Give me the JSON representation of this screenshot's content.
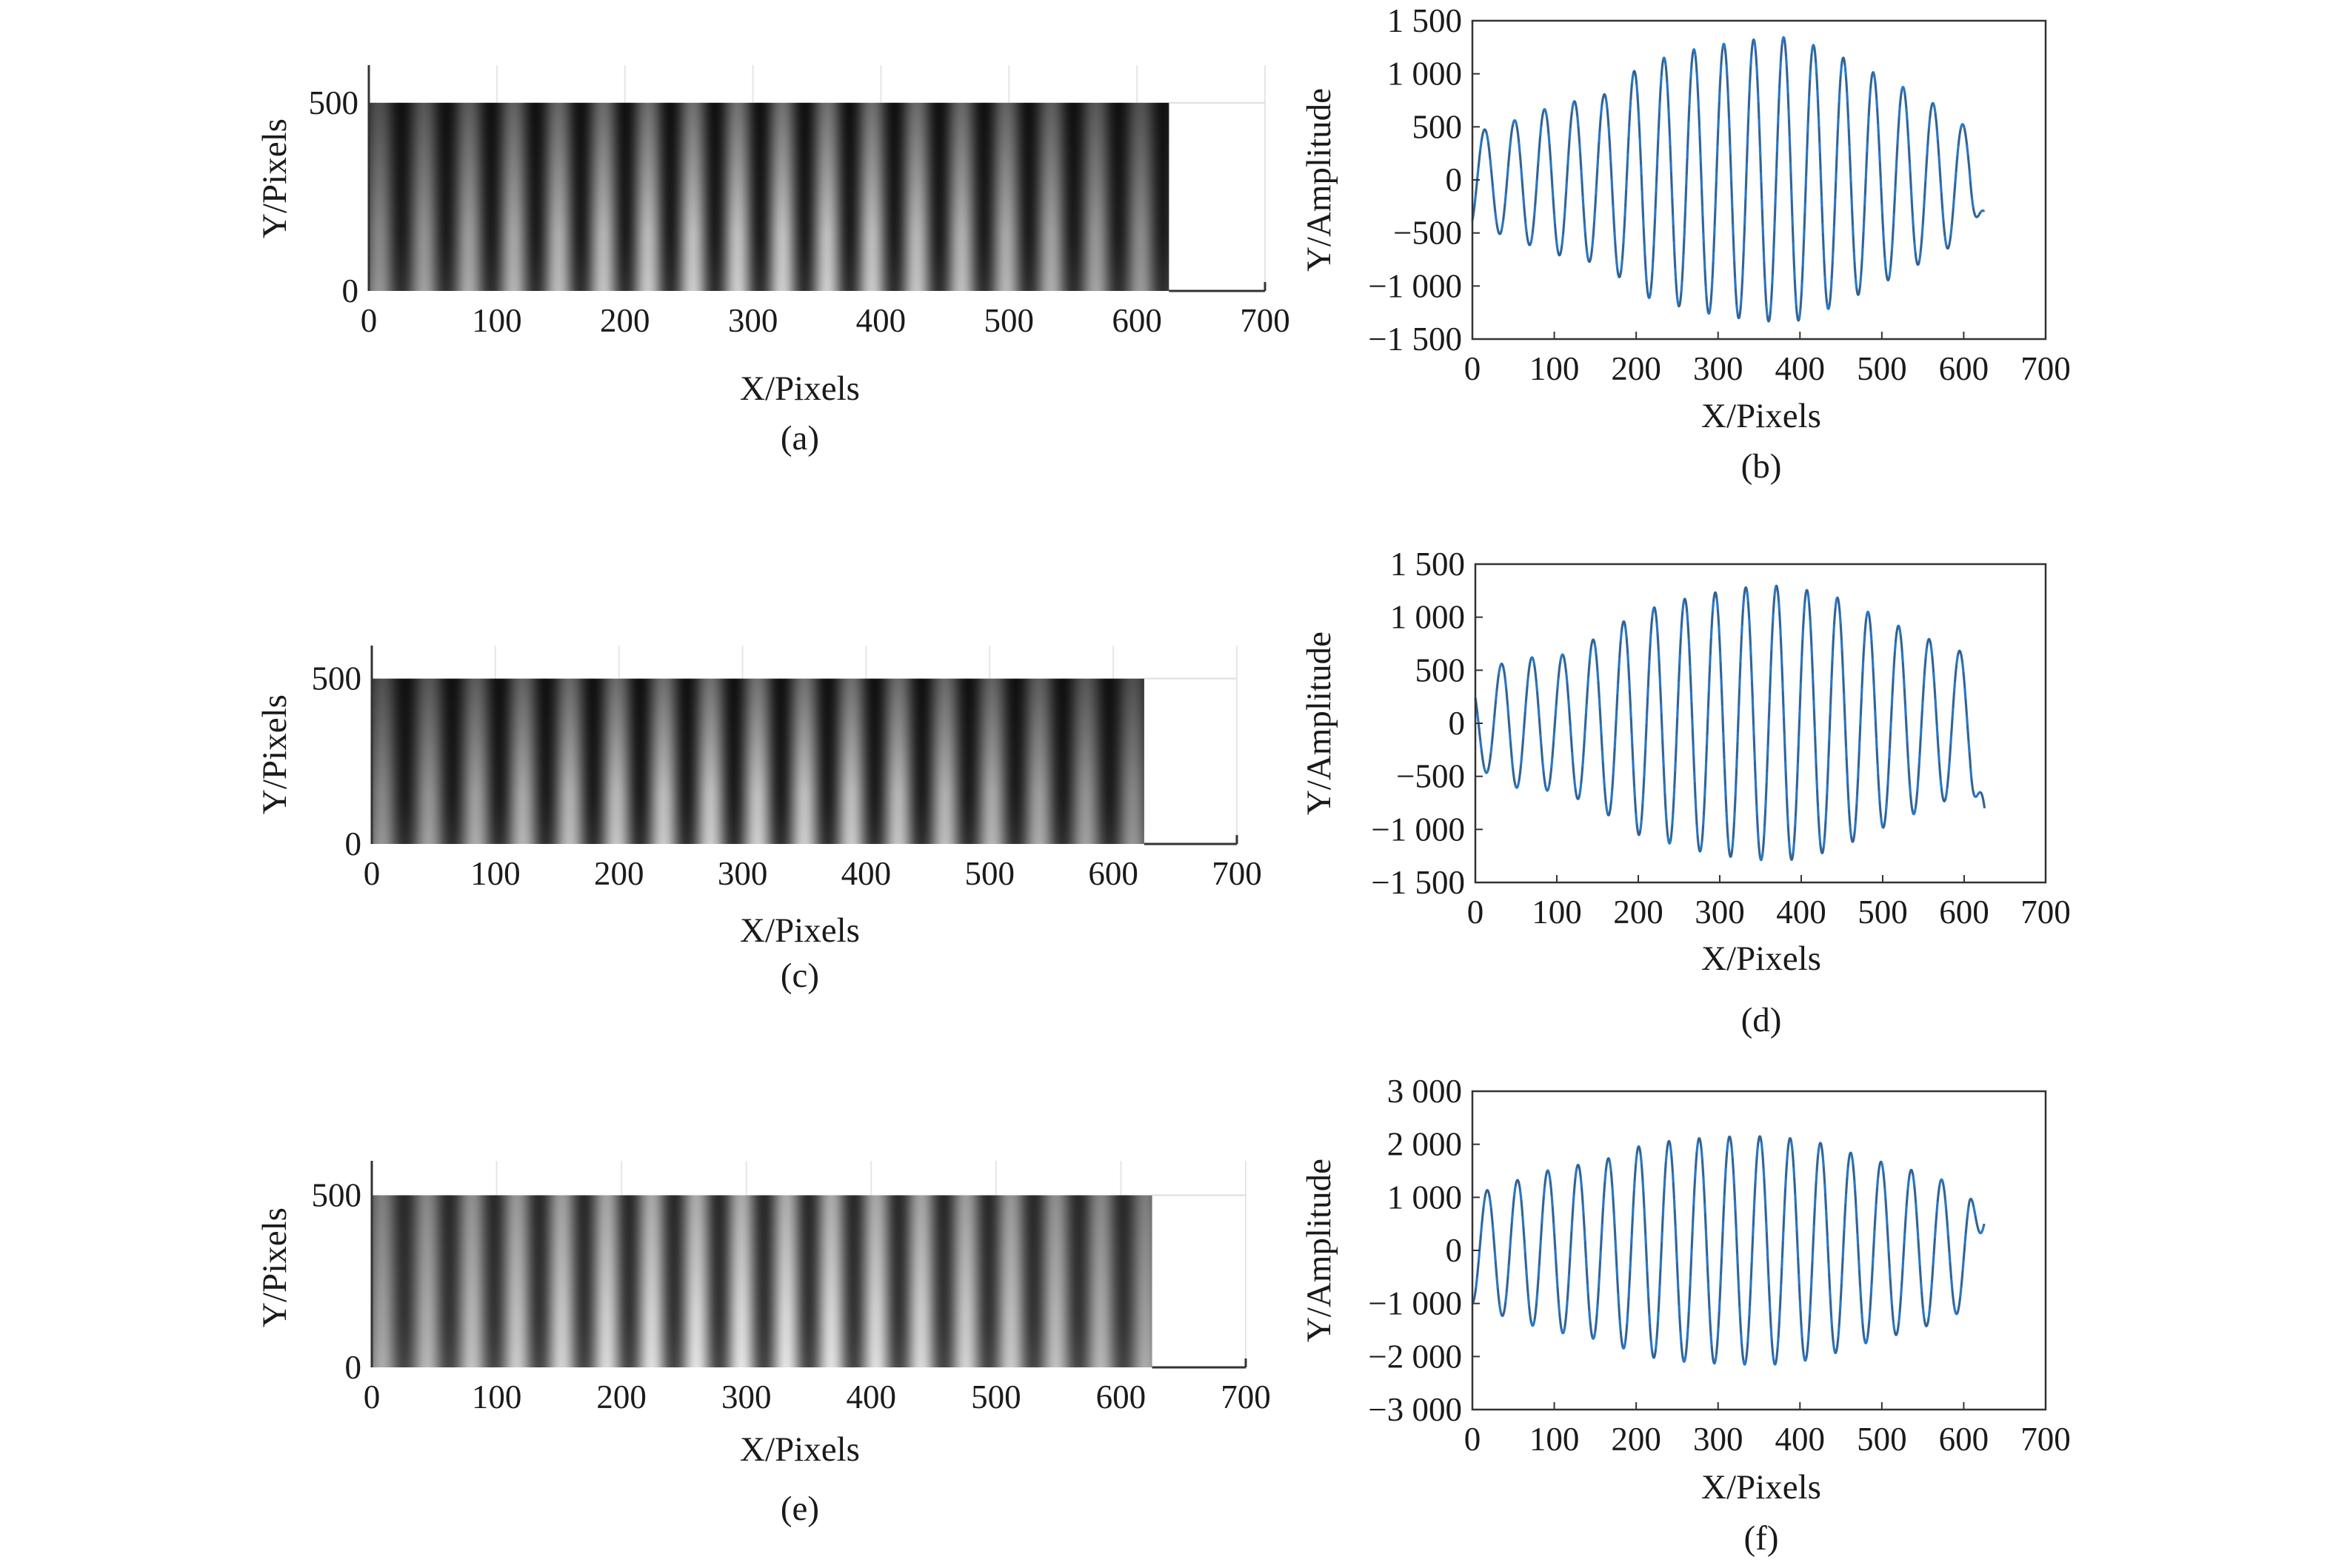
{
  "chart_data": [
    {
      "panel": "a",
      "type": "heatmap",
      "caption": "(a)",
      "xlabel": "X/Pixels",
      "ylabel": "Y/Pixels",
      "xlim": [
        0,
        700
      ],
      "ylim": [
        0,
        600
      ],
      "xticks": [
        0,
        100,
        200,
        300,
        400,
        500,
        600,
        700
      ],
      "yticks": [
        0,
        500
      ],
      "xtick_labels": [
        "0",
        "100",
        "200",
        "300",
        "400",
        "500",
        "600",
        "700"
      ],
      "ytick_labels": [
        "0",
        "500"
      ],
      "image_extent": {
        "x": [
          0,
          625
        ],
        "y": [
          0,
          500
        ]
      },
      "fringe_period": 35,
      "fringe_count": 17,
      "colormap": "gray",
      "brightness": "dark"
    },
    {
      "panel": "b",
      "type": "line",
      "caption": "(b)",
      "xlabel": "X/Pixels",
      "ylabel": "Y/Amplitude",
      "xlim": [
        0,
        700
      ],
      "ylim": [
        -1500,
        1500
      ],
      "xticks": [
        0,
        100,
        200,
        300,
        400,
        500,
        600,
        700
      ],
      "yticks": [
        -1500,
        -1000,
        -500,
        0,
        500,
        1000,
        1500
      ],
      "xtick_labels": [
        "0",
        "100",
        "200",
        "300",
        "400",
        "500",
        "600",
        "700"
      ],
      "ytick_labels": [
        "−1 500",
        "−1 000",
        "−500",
        "0",
        "500",
        "1 000",
        "1 500"
      ],
      "x_range": [
        0,
        625
      ],
      "period": 36.5,
      "phase_x": 15,
      "end_value": -300,
      "envelope": {
        "x": [
          0,
          30,
          100,
          160,
          210,
          280,
          340,
          390,
          440,
          520,
          580,
          625
        ],
        "y": [
          450,
          500,
          700,
          800,
          1100,
          1250,
          1320,
          1350,
          1200,
          900,
          650,
          350
        ]
      },
      "line_color": "#2878c8",
      "grey_overlay": "#4a4a4a"
    },
    {
      "panel": "c",
      "type": "heatmap",
      "caption": "(c)",
      "xlabel": "X/Pixels",
      "ylabel": "Y/Pixels",
      "xlim": [
        0,
        700
      ],
      "ylim": [
        0,
        600
      ],
      "xticks": [
        0,
        100,
        200,
        300,
        400,
        500,
        600,
        700
      ],
      "yticks": [
        0,
        500
      ],
      "xtick_labels": [
        "0",
        "100",
        "200",
        "300",
        "400",
        "500",
        "600",
        "700"
      ],
      "ytick_labels": [
        "0",
        "500"
      ],
      "image_extent": {
        "x": [
          0,
          625
        ],
        "y": [
          0,
          500
        ]
      },
      "fringe_period": 38,
      "fringe_count": 16,
      "colormap": "gray",
      "brightness": "dark"
    },
    {
      "panel": "d",
      "type": "line",
      "caption": "(d)",
      "xlabel": "X/Pixels",
      "ylabel": "Y/Amplitude",
      "xlim": [
        0,
        700
      ],
      "ylim": [
        -1500,
        1500
      ],
      "xticks": [
        0,
        100,
        200,
        300,
        400,
        500,
        600,
        700
      ],
      "yticks": [
        -1500,
        -1000,
        -500,
        0,
        500,
        1000,
        1500
      ],
      "xtick_labels": [
        "0",
        "100",
        "200",
        "300",
        "400",
        "500",
        "600",
        "700"
      ],
      "ytick_labels": [
        "−1 500",
        "−1 000",
        "−500",
        "0",
        "500",
        "1 000",
        "1 500"
      ],
      "x_range": [
        0,
        625
      ],
      "period": 37.5,
      "phase_x": 32,
      "end_value": -800,
      "envelope": {
        "x": [
          0,
          40,
          110,
          160,
          200,
          270,
          330,
          380,
          440,
          510,
          570,
          625
        ],
        "y": [
          400,
          600,
          650,
          850,
          1050,
          1200,
          1280,
          1300,
          1200,
          950,
          750,
          600
        ]
      },
      "line_color": "#2878c8",
      "grey_overlay": "#4a4a4a"
    },
    {
      "panel": "e",
      "type": "heatmap",
      "caption": "(e)",
      "xlabel": "X/Pixels",
      "ylabel": "Y/Pixels",
      "xlim": [
        0,
        700
      ],
      "ylim": [
        0,
        600
      ],
      "xticks": [
        0,
        100,
        200,
        300,
        400,
        500,
        600,
        700
      ],
      "yticks": [
        0,
        500
      ],
      "xtick_labels": [
        "0",
        "100",
        "200",
        "300",
        "400",
        "500",
        "600",
        "700"
      ],
      "ytick_labels": [
        "0",
        "500"
      ],
      "image_extent": {
        "x": [
          0,
          625
        ],
        "y": [
          0,
          500
        ]
      },
      "fringe_period": 36,
      "fringe_count": 17,
      "colormap": "gray",
      "brightness": "light"
    },
    {
      "panel": "f",
      "type": "line",
      "caption": "(f)",
      "xlabel": "X/Pixels",
      "ylabel": "Y/Amplitude",
      "xlim": [
        0,
        700
      ],
      "ylim": [
        -3000,
        3000
      ],
      "xticks": [
        0,
        100,
        200,
        300,
        400,
        500,
        600,
        700
      ],
      "yticks": [
        -3000,
        -2000,
        -1000,
        0,
        1000,
        2000,
        3000
      ],
      "xtick_labels": [
        "0",
        "100",
        "200",
        "300",
        "400",
        "500",
        "600",
        "700"
      ],
      "ytick_labels": [
        "−3 000",
        "−2 000",
        "−1 000",
        "0",
        "1 000",
        "2 000",
        "3 000"
      ],
      "x_range": [
        0,
        625
      ],
      "period": 37,
      "phase_x": 18,
      "end_value": 500,
      "envelope": {
        "x": [
          0,
          20,
          90,
          160,
          210,
          260,
          320,
          370,
          420,
          480,
          540,
          580,
          625
        ],
        "y": [
          1000,
          1150,
          1500,
          1700,
          2000,
          2100,
          2150,
          2150,
          2050,
          1750,
          1500,
          1300,
          900
        ]
      },
      "line_color": "#2878c8",
      "grey_overlay": "#4a4a4a"
    }
  ]
}
